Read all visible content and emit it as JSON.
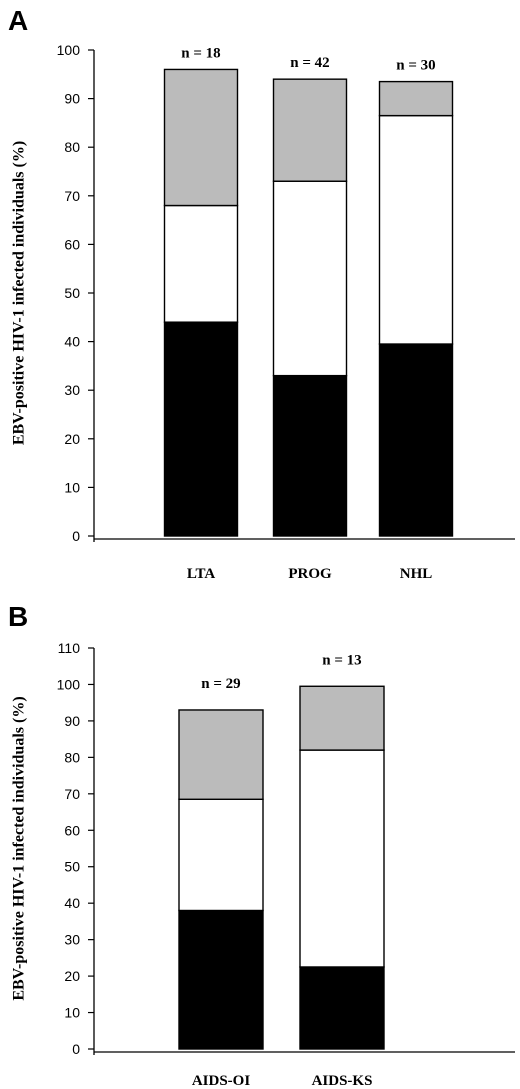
{
  "chart_data": [
    {
      "type": "bar",
      "stacked": true,
      "panel": "A",
      "ylabel": "EBV-positive HIV-1 infected individuals (%)",
      "ylim": [
        0,
        100
      ],
      "yticks": [
        0,
        10,
        20,
        30,
        40,
        50,
        60,
        70,
        80,
        90,
        100
      ],
      "categories": [
        "LTA",
        "PROG",
        "NHL"
      ],
      "annotations": [
        "n = 18",
        "n = 42",
        "n = 30"
      ],
      "series": [
        {
          "values": [
            44,
            33,
            39.5
          ],
          "color": "#000000"
        },
        {
          "values": [
            24,
            40,
            47
          ],
          "color": "#ffffff"
        },
        {
          "values": [
            28,
            21,
            7
          ],
          "color": "#bbbbbb"
        }
      ]
    },
    {
      "type": "bar",
      "stacked": true,
      "panel": "B",
      "ylabel": "EBV-positive HIV-1 infected individuals (%)",
      "ylim": [
        0,
        110
      ],
      "yticks": [
        0,
        10,
        20,
        30,
        40,
        50,
        60,
        70,
        80,
        90,
        100,
        110
      ],
      "categories": [
        "AIDS-OI",
        "AIDS-KS"
      ],
      "annotations": [
        "n = 29",
        "n = 13"
      ],
      "series": [
        {
          "values": [
            38,
            22.5
          ],
          "color": "#000000"
        },
        {
          "values": [
            30.5,
            59.5
          ],
          "color": "#ffffff"
        },
        {
          "values": [
            24.5,
            17.5
          ],
          "color": "#bbbbbb"
        }
      ]
    }
  ]
}
